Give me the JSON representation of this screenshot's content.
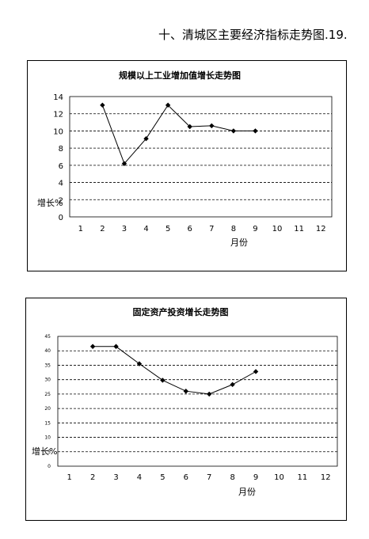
{
  "page": {
    "heading": "十、清城区主要经济指标走势图.19."
  },
  "chart_data": [
    {
      "type": "line",
      "title": "规模以上工业增加值增长走势图",
      "xlabel": "月份",
      "ylabel": "增长%",
      "categories": [
        "1",
        "2",
        "3",
        "4",
        "5",
        "6",
        "7",
        "8",
        "9",
        "10",
        "11",
        "12"
      ],
      "x": [
        2,
        3,
        4,
        5,
        6,
        7,
        8,
        9
      ],
      "values": [
        13,
        6.2,
        9.1,
        13,
        10.5,
        10.6,
        10,
        10
      ],
      "ylim": [
        0,
        14
      ],
      "yticks": [
        "0",
        "2",
        "4",
        "6",
        "8",
        "10",
        "12",
        "14"
      ],
      "grid": "dashed-horizontal",
      "legend": "none",
      "line_color": "#000000",
      "marker": "diamond"
    },
    {
      "type": "line",
      "title": "固定资产投资增长走势图",
      "xlabel": "月份",
      "ylabel": "增长%",
      "categories": [
        "1",
        "2",
        "3",
        "4",
        "5",
        "6",
        "7",
        "8",
        "9",
        "10",
        "11",
        "12"
      ],
      "x": [
        2,
        3,
        4,
        5,
        6,
        7,
        8,
        9
      ],
      "values": [
        41.5,
        41.5,
        35.5,
        29.8,
        26,
        25,
        28.3,
        32.8
      ],
      "ylim": [
        0,
        45
      ],
      "yticks": [
        "0",
        "5",
        "10",
        "15",
        "20",
        "25",
        "30",
        "35",
        "40",
        "45"
      ],
      "grid": "dashed-horizontal",
      "legend": "none",
      "line_color": "#000000",
      "marker": "diamond"
    }
  ]
}
